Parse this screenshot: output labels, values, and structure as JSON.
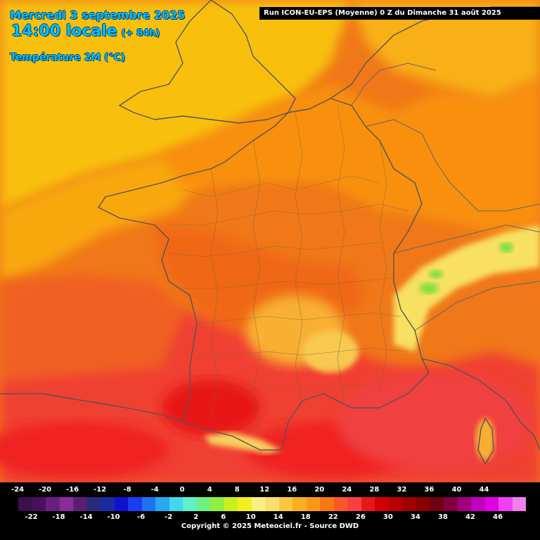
{
  "header": {
    "date": "Mercredi 3 septembre 2025",
    "time": "14:00 locale",
    "lead": "(+ 84h)",
    "parameter": "Température 2M (°C)",
    "run": "Run ICON-EU-EPS (Moyenne) 0 Z du Dimanche 31 août 2025"
  },
  "legend": {
    "top_labels": [
      "-24",
      "-20",
      "-16",
      "-12",
      "-8",
      "-4",
      "0",
      "4",
      "8",
      "12",
      "16",
      "20",
      "24",
      "28",
      "32",
      "36",
      "40",
      "44"
    ],
    "bottom_labels": [
      "-22",
      "-18",
      "-14",
      "-10",
      "-6",
      "-2",
      "2",
      "6",
      "10",
      "14",
      "18",
      "22",
      "26",
      "30",
      "34",
      "38",
      "42",
      "46"
    ],
    "colors": [
      "#3a0f4a",
      "#4a1060",
      "#6a1f80",
      "#8a2c9a",
      "#5a2070",
      "#2a2a7a",
      "#1a2aa0",
      "#1010d0",
      "#1c3cf0",
      "#1c72f0",
      "#28a8f0",
      "#40d8f0",
      "#60f0c8",
      "#70f080",
      "#90f040",
      "#c8f020",
      "#f0f020",
      "#f8f080",
      "#f8e070",
      "#f8c840",
      "#f8b020",
      "#f89818",
      "#f87818",
      "#f85828",
      "#f84040",
      "#e81818",
      "#d00000",
      "#b80000",
      "#a00000",
      "#8a0000",
      "#700010",
      "#800040",
      "#a00080",
      "#c000c0",
      "#e000e0",
      "#f040f0",
      "#f080f0"
    ],
    "copyright": "Copyright © 2025 Meteociel.fr - Source DWD"
  },
  "map": {
    "icons": [
      "coastline-lines",
      "border-lines",
      "department-lines"
    ],
    "palette": {
      "yellow_orange": "#f8c020",
      "orange": "#f8a010",
      "dark_orange": "#f07010",
      "red_orange": "#f05020",
      "red": "#f03030",
      "crimson": "#e81818",
      "light_yellow": "#f8e880",
      "green": "#80e040"
    }
  }
}
